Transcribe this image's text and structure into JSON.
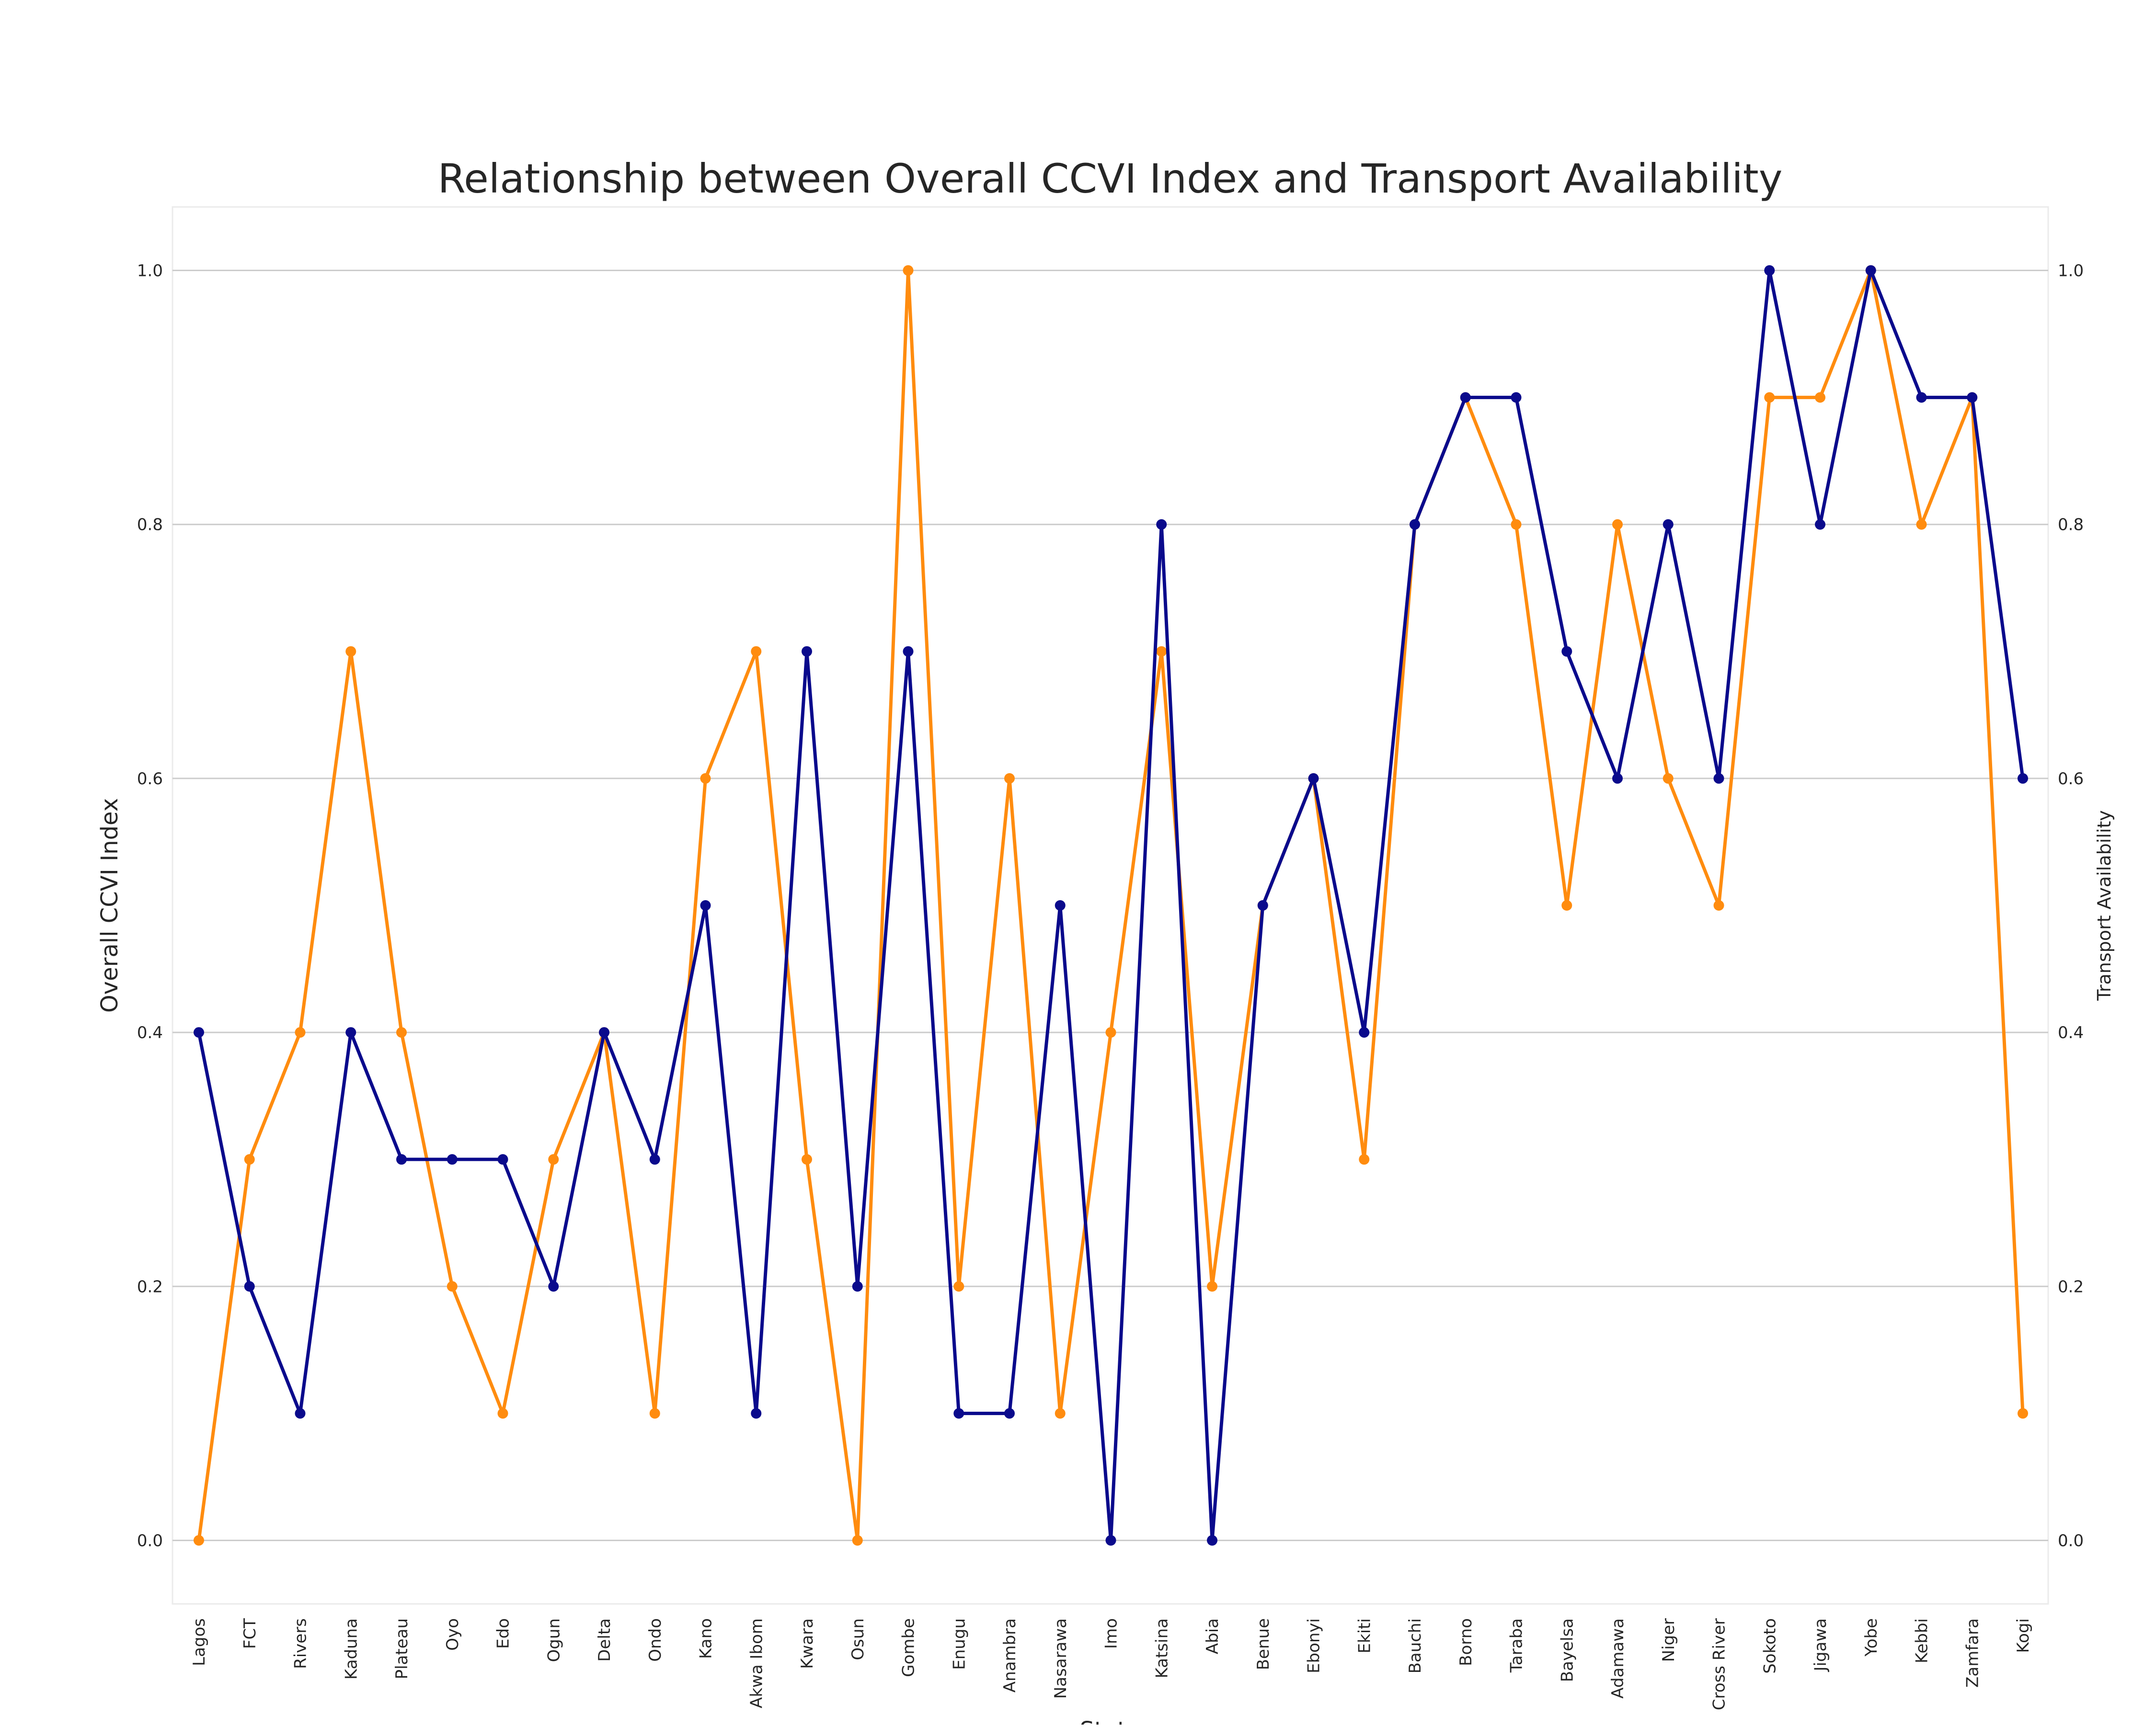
{
  "chart_data": {
    "type": "line",
    "title": "Relationship between Overall CCVI Index and  Transport Availability",
    "xlabel": "State",
    "ylabel": "Overall CCVI Index",
    "ylabel_right": "Transport Availability",
    "ylim": [
      -0.05,
      1.05
    ],
    "y_ticks": [
      "0.0",
      "0.2",
      "0.4",
      "0.6",
      "0.8",
      "1.0"
    ],
    "grid": "horizontal",
    "categories": [
      "Lagos",
      "FCT",
      "Rivers",
      "Kaduna",
      "Plateau",
      "Oyo",
      "Edo",
      "Ogun",
      "Delta",
      "Ondo",
      "Kano",
      "Akwa Ibom",
      "Kwara",
      "Osun",
      "Gombe",
      "Enugu",
      "Anambra",
      "Nasarawa",
      "Imo",
      "Katsina",
      "Abia",
      "Benue",
      "Ebonyi",
      "Ekiti",
      "Bauchi",
      "Borno",
      "Taraba",
      "Bayelsa",
      "Adamawa",
      "Niger",
      "Cross River",
      "Sokoto",
      "Jigawa",
      "Yobe",
      "Kebbi",
      "Zamfara",
      "Kogi"
    ],
    "series": [
      {
        "axis": "right",
        "color": "#ff8c0f",
        "values": [
          0.0,
          0.3,
          0.4,
          0.7,
          0.4,
          0.2,
          0.1,
          0.3,
          0.4,
          0.1,
          0.6,
          0.7,
          0.3,
          0.0,
          1.0,
          0.2,
          0.6,
          0.1,
          0.4,
          0.7,
          0.2,
          0.5,
          0.6,
          0.3,
          0.8,
          0.9,
          0.8,
          0.5,
          0.8,
          0.6,
          0.5,
          0.9,
          0.9,
          1.0,
          0.8,
          0.9,
          0.1
        ]
      },
      {
        "axis": "left",
        "color": "#0a0a8c",
        "values": [
          0.4,
          0.2,
          0.1,
          0.4,
          0.3,
          0.3,
          0.3,
          0.2,
          0.4,
          0.3,
          0.5,
          0.1,
          0.7,
          0.2,
          0.7,
          0.1,
          0.1,
          0.5,
          0.0,
          0.8,
          0.0,
          0.5,
          0.6,
          0.4,
          0.8,
          0.9,
          0.9,
          0.7,
          0.6,
          0.8,
          0.6,
          1.0,
          0.8,
          1.0,
          0.9,
          0.9,
          0.6
        ]
      }
    ]
  }
}
